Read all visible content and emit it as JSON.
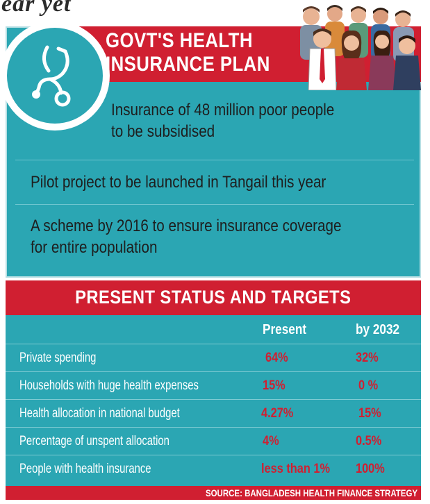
{
  "top_fragment": "ear yet",
  "header": {
    "title_line1": "GOVT'S HEALTH",
    "title_line2": "INSURANCE PLAN"
  },
  "icons": {
    "badge": "stethoscope-icon",
    "illustration": "people-group-icon"
  },
  "plan_items": [
    {
      "line1": "Insurance of 48 million poor people",
      "line2": "to be subsidised"
    },
    {
      "line1": "Pilot project to be launched in Tangail this year"
    },
    {
      "line1": "A scheme by 2016 to ensure insurance coverage",
      "line2": "for entire population"
    }
  ],
  "status": {
    "title": "PRESENT STATUS AND TARGETS",
    "columns": [
      "Present",
      "by 2032"
    ],
    "rows": [
      {
        "label": "Private spending",
        "present": "64%",
        "target": "32%"
      },
      {
        "label": "Households with huge health expenses",
        "present": "15%",
        "target": "0 %"
      },
      {
        "label": "Health allocation in national budget",
        "present": "4.27%",
        "target": "15%"
      },
      {
        "label": "Percentage of unspent allocation",
        "present": "4%",
        "target": "0.5%"
      },
      {
        "label": "People with health insurance",
        "present": "less than 1%",
        "target": "100%"
      }
    ]
  },
  "source": "SOURCE: BANGLADESH HEALTH FINANCE STRATEGY",
  "colors": {
    "teal": "#2ba6b3",
    "red": "#d01f31",
    "white": "#ffffff"
  }
}
